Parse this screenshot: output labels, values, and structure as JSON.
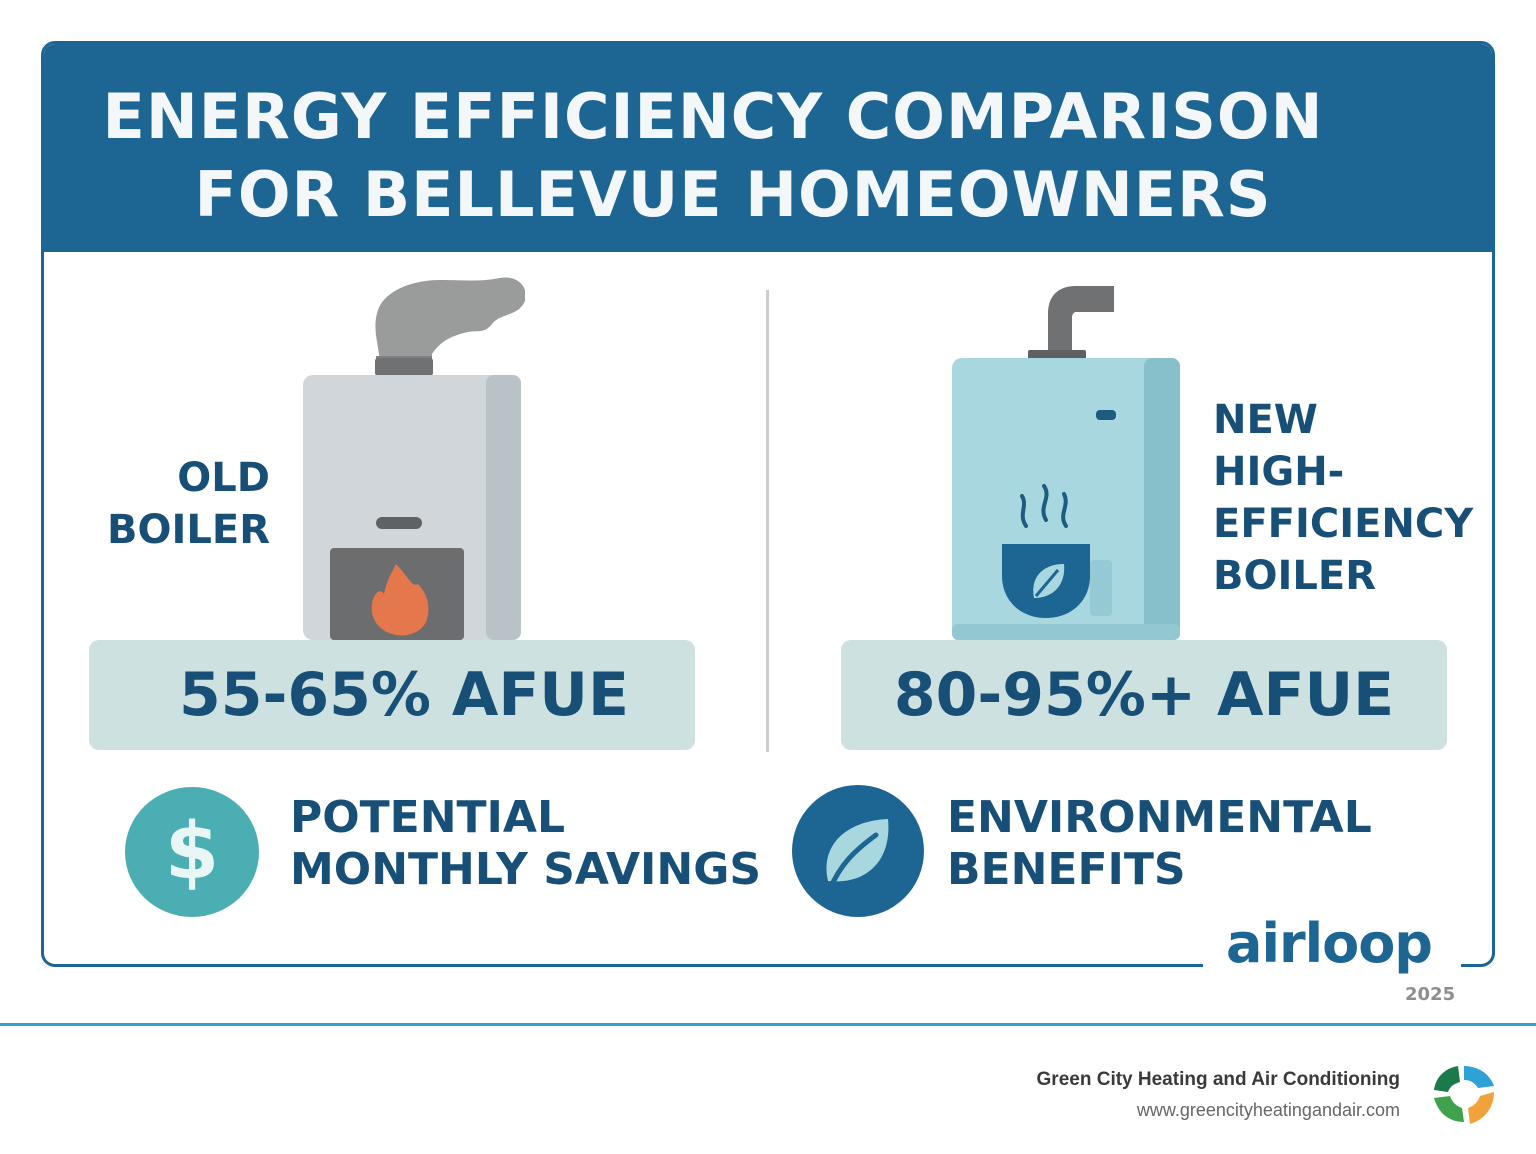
{
  "header": {
    "title_line1": "ENERGY EFFICIENCY COMPARISON",
    "title_line2": "FOR BELLEVUE HOMEOWNERS"
  },
  "old_boiler": {
    "label_line1": "OLD",
    "label_line2": "BOILER",
    "afue": "55-65% AFUE",
    "icon": "old-boiler-icon"
  },
  "new_boiler": {
    "label_line1": "NEW",
    "label_line2": "HIGH-",
    "label_line3": "EFFICIENCY",
    "label_line4": "BOILER",
    "afue": "80-95%+ AFUE",
    "icon": "high-efficiency-boiler-icon"
  },
  "benefits": {
    "savings_line1": "POTENTIAL",
    "savings_line2": "MONTHLY SAVINGS",
    "savings_icon": "dollar-icon",
    "savings_symbol": "$",
    "environment_line1": "ENVIRONMENTAL",
    "environment_line2": "BENEFITS",
    "environment_icon": "leaf-icon"
  },
  "brand": {
    "name": "airloop",
    "year": "2025"
  },
  "footer": {
    "company": "Green City Heating and Air Conditioning",
    "url": "www.greencityheatingandair.com",
    "logo_icon": "green-city-logo-icon"
  },
  "colors": {
    "primary_blue": "#1d6593",
    "text_navy": "#174f77",
    "afue_box": "#cde1e0",
    "teal": "#4aaeb3",
    "footer_line": "#2ea1d6",
    "flame": "#e4774b"
  }
}
